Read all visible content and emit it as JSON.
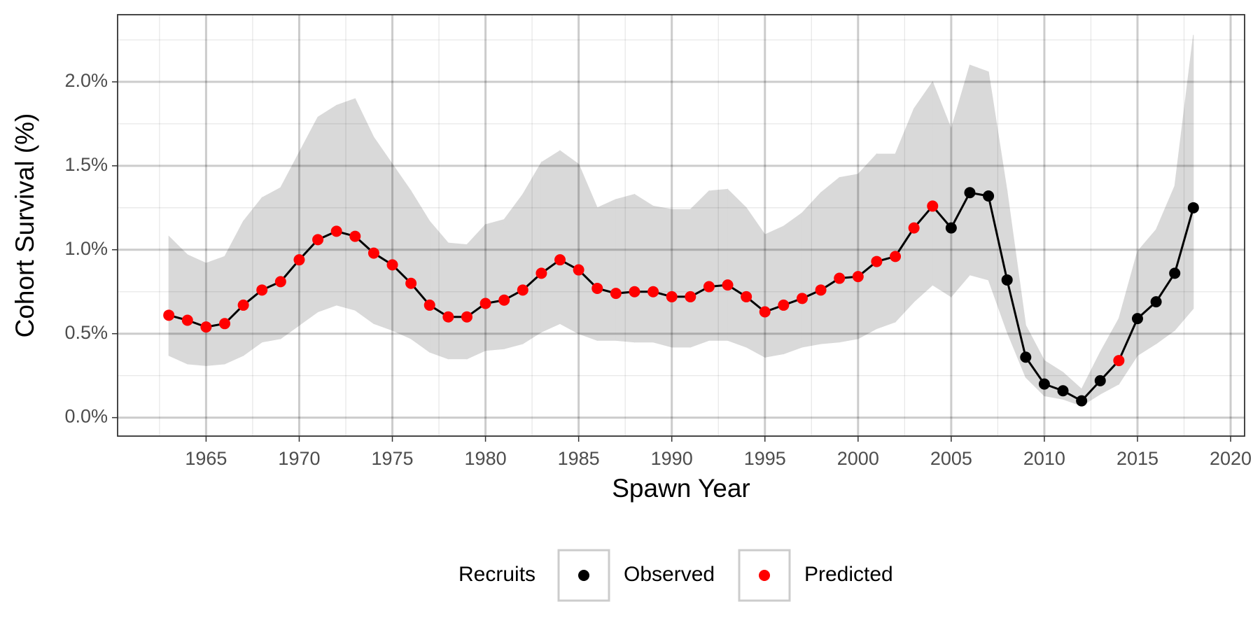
{
  "chart_data": {
    "type": "line",
    "xlabel": "Spawn Year",
    "ylabel": "Cohort Survival (%)",
    "x": [
      1963,
      1964,
      1965,
      1966,
      1967,
      1968,
      1969,
      1970,
      1971,
      1972,
      1973,
      1974,
      1975,
      1976,
      1977,
      1978,
      1979,
      1980,
      1981,
      1982,
      1983,
      1984,
      1985,
      1986,
      1987,
      1988,
      1989,
      1990,
      1991,
      1992,
      1993,
      1994,
      1995,
      1996,
      1997,
      1998,
      1999,
      2000,
      2001,
      2002,
      2003,
      2004,
      2005,
      2006,
      2007,
      2008,
      2009,
      2010,
      2011,
      2012,
      2013,
      2014,
      2015,
      2016,
      2017,
      2018
    ],
    "series": [
      {
        "name": "Observed",
        "color": "#000000",
        "values": [
          null,
          null,
          null,
          null,
          null,
          null,
          null,
          null,
          null,
          null,
          null,
          null,
          null,
          null,
          null,
          null,
          null,
          null,
          null,
          null,
          null,
          null,
          null,
          null,
          null,
          null,
          null,
          null,
          null,
          null,
          null,
          null,
          null,
          null,
          null,
          null,
          null,
          null,
          null,
          null,
          null,
          null,
          1.13,
          1.34,
          1.32,
          0.82,
          0.36,
          0.2,
          0.16,
          0.1,
          0.22,
          null,
          0.59,
          0.69,
          0.86,
          1.25
        ]
      },
      {
        "name": "Predicted",
        "color": "#ff0000",
        "values": [
          0.61,
          0.58,
          0.54,
          0.56,
          0.67,
          0.76,
          0.81,
          0.94,
          1.06,
          1.11,
          1.08,
          0.98,
          0.91,
          0.8,
          0.67,
          0.6,
          0.6,
          0.68,
          0.7,
          0.76,
          0.86,
          0.94,
          0.88,
          0.77,
          0.74,
          0.75,
          0.75,
          0.72,
          0.72,
          0.78,
          0.79,
          0.72,
          0.63,
          0.67,
          0.71,
          0.76,
          0.83,
          0.84,
          0.93,
          0.96,
          1.13,
          1.26,
          null,
          null,
          null,
          null,
          null,
          null,
          null,
          null,
          null,
          0.34,
          null,
          null,
          null,
          null
        ]
      }
    ],
    "band": {
      "color": "#d9d9d9",
      "upper": [
        1.08,
        0.97,
        0.92,
        0.96,
        1.17,
        1.31,
        1.37,
        1.58,
        1.79,
        1.86,
        1.9,
        1.67,
        1.51,
        1.35,
        1.17,
        1.04,
        1.03,
        1.15,
        1.18,
        1.33,
        1.52,
        1.59,
        1.51,
        1.25,
        1.3,
        1.33,
        1.26,
        1.24,
        1.24,
        1.35,
        1.36,
        1.25,
        1.09,
        1.14,
        1.22,
        1.34,
        1.43,
        1.45,
        1.57,
        1.57,
        1.84,
        2.0,
        1.72,
        2.1,
        2.06,
        1.35,
        0.55,
        0.34,
        0.27,
        0.17,
        0.39,
        0.59,
        0.99,
        1.12,
        1.38,
        2.28
      ],
      "lower": [
        0.37,
        0.32,
        0.31,
        0.32,
        0.37,
        0.45,
        0.47,
        0.55,
        0.63,
        0.67,
        0.64,
        0.56,
        0.52,
        0.47,
        0.39,
        0.35,
        0.35,
        0.4,
        0.41,
        0.44,
        0.51,
        0.56,
        0.5,
        0.46,
        0.46,
        0.45,
        0.45,
        0.42,
        0.42,
        0.46,
        0.46,
        0.42,
        0.36,
        0.38,
        0.42,
        0.44,
        0.45,
        0.47,
        0.53,
        0.57,
        0.69,
        0.79,
        0.72,
        0.85,
        0.82,
        0.51,
        0.24,
        0.13,
        0.11,
        0.07,
        0.14,
        0.2,
        0.37,
        0.44,
        0.52,
        0.65
      ]
    },
    "xlim": [
      1960.25,
      2020.75
    ],
    "ylim": [
      -0.11,
      2.4
    ],
    "xticks": [
      1965,
      1970,
      1975,
      1980,
      1985,
      1990,
      1995,
      2000,
      2005,
      2010,
      2015,
      2020
    ],
    "yticks": [
      {
        "value": 0,
        "label": "0.0%"
      },
      {
        "value": 0.5,
        "label": "0.5%"
      },
      {
        "value": 1,
        "label": "1.0%"
      },
      {
        "value": 1.5,
        "label": "1.5%"
      },
      {
        "value": 2,
        "label": "2.0%"
      }
    ],
    "xminor": [
      1962.5,
      1967.5,
      1972.5,
      1977.5,
      1982.5,
      1987.5,
      1992.5,
      1997.5,
      2002.5,
      2007.5,
      2012.5,
      2017.5
    ],
    "yminor": [
      0.25,
      0.75,
      1.25,
      1.75,
      2.25
    ],
    "grid": true,
    "legend": {
      "title": "Recruits",
      "position": "bottom"
    }
  }
}
